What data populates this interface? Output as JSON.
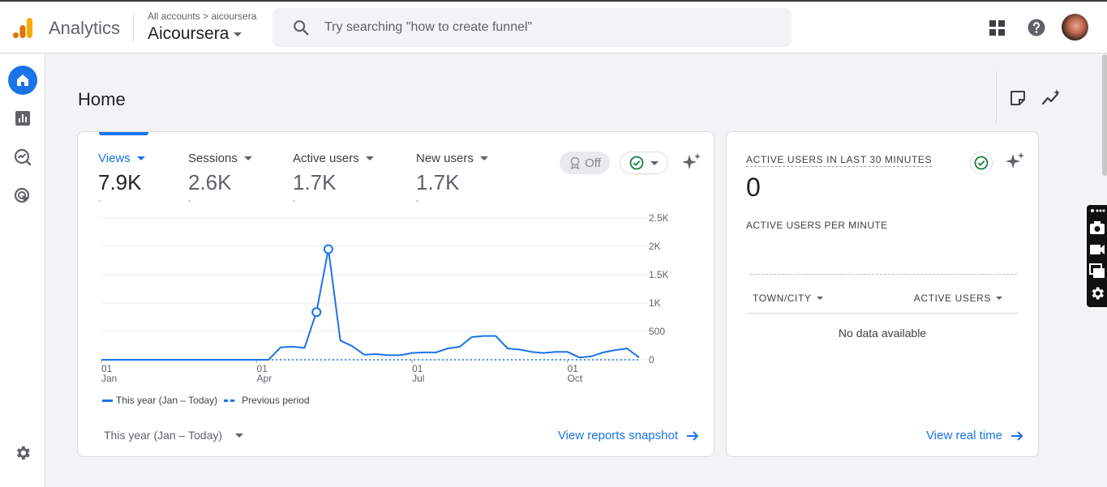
{
  "header": {
    "app_name": "Analytics",
    "breadcrumb": "All accounts > aicoursera",
    "account_name": "Aicoursera",
    "search_placeholder": "Try searching \"how to create funnel\""
  },
  "icons": {
    "logo": "analytics-logo-icon",
    "search": "search-icon",
    "apps": "apps-grid-icon",
    "help": "help-icon",
    "nav": [
      "home-icon",
      "reports-icon",
      "explore-icon",
      "advertising-icon",
      "settings-icon"
    ]
  },
  "colors": {
    "accent": "#1a73e8",
    "logo_orange": "#f9ab00",
    "logo_dark": "#e37400",
    "check_green": "#188038"
  },
  "page": {
    "title": "Home"
  },
  "overview": {
    "metrics": [
      {
        "label": "Views",
        "value": "7.9K",
        "change": "-"
      },
      {
        "label": "Sessions",
        "value": "2.6K",
        "change": "-"
      },
      {
        "label": "Active users",
        "value": "1.7K",
        "change": "-"
      },
      {
        "label": "New users",
        "value": "1.7K",
        "change": "-"
      }
    ],
    "benchmark_toggle": "Off",
    "legend": {
      "current": "This year (Jan – Today)",
      "previous": "Previous period"
    },
    "date_range": "This year (Jan – Today)",
    "snapshot_link": "View reports snapshot"
  },
  "realtime": {
    "title": "ACTIVE USERS IN LAST 30 MINUTES",
    "value": "0",
    "per_minute_label": "ACTIVE USERS PER MINUTE",
    "col_city": "TOWN/CITY",
    "col_users": "ACTIVE USERS",
    "empty_text": "No data available",
    "link": "View real time"
  },
  "chart_data": {
    "type": "line",
    "ylim": [
      0,
      2500
    ],
    "yticks": [
      "0",
      "500",
      "1K",
      "1.5K",
      "2K",
      "2.5K"
    ],
    "x_ticks": [
      {
        "day": "01",
        "month": "Jan",
        "index": 0
      },
      {
        "day": "01",
        "month": "Apr",
        "index": 13
      },
      {
        "day": "01",
        "month": "Jul",
        "index": 26
      },
      {
        "day": "01",
        "month": "Oct",
        "index": 39
      }
    ],
    "series": [
      {
        "name": "This year (Jan – Today)",
        "values": [
          0,
          0,
          0,
          0,
          0,
          0,
          0,
          0,
          0,
          0,
          0,
          0,
          0,
          0,
          0,
          220,
          230,
          210,
          840,
          1950,
          340,
          240,
          90,
          100,
          80,
          80,
          120,
          130,
          130,
          200,
          230,
          400,
          420,
          420,
          200,
          180,
          140,
          120,
          140,
          140,
          40,
          60,
          130,
          170,
          200,
          40
        ],
        "markers": [
          18,
          19
        ]
      },
      {
        "name": "Previous period",
        "values": [
          0,
          0,
          0,
          0,
          0,
          0,
          0,
          0,
          0,
          0,
          0,
          0,
          0,
          0,
          0,
          0,
          0,
          0,
          0,
          0,
          0,
          0,
          0,
          0,
          0,
          0,
          0,
          0,
          0,
          0,
          0,
          0,
          0,
          0,
          0,
          0,
          0,
          0,
          0,
          0,
          0,
          0,
          0,
          0,
          0,
          0
        ]
      }
    ]
  }
}
